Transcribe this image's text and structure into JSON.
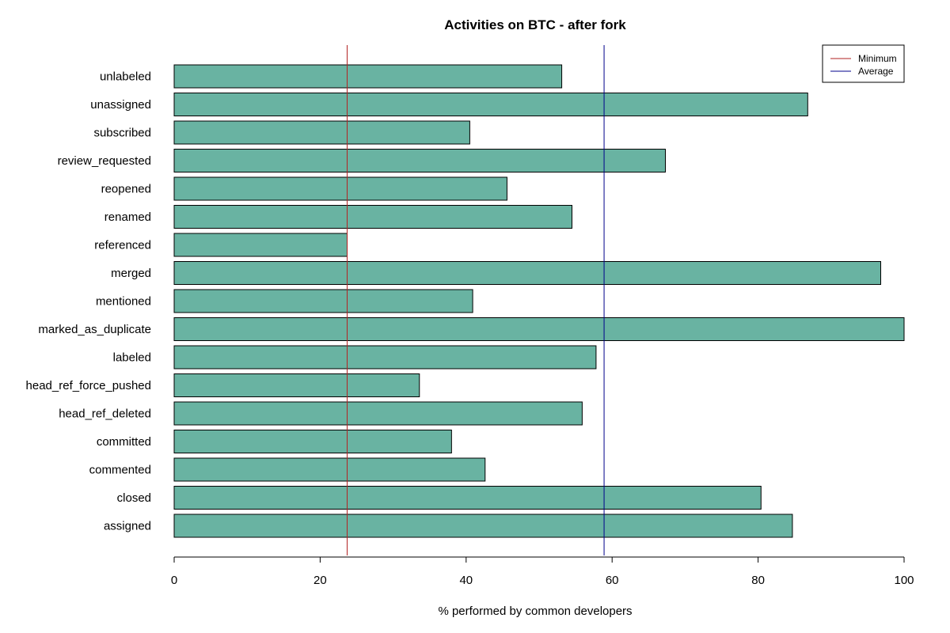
{
  "chart_data": {
    "type": "bar",
    "orientation": "horizontal",
    "title": "Activities on BTC - after fork",
    "xlabel": "% performed by common developers",
    "ylabel": "",
    "xlim": [
      0,
      100
    ],
    "xticks": [
      0,
      20,
      40,
      60,
      80,
      100
    ],
    "grid": false,
    "bar_color": "#69b3a2",
    "categories": [
      "assigned",
      "closed",
      "commented",
      "committed",
      "head_ref_deleted",
      "head_ref_force_pushed",
      "labeled",
      "marked_as_duplicate",
      "mentioned",
      "merged",
      "referenced",
      "renamed",
      "reopened",
      "review_requested",
      "subscribed",
      "unassigned",
      "unlabeled"
    ],
    "values": [
      84.7,
      80.4,
      42.6,
      38.0,
      55.9,
      33.6,
      57.8,
      100.0,
      40.9,
      96.8,
      23.7,
      54.5,
      45.6,
      67.3,
      40.5,
      86.8,
      53.1
    ],
    "reference_lines": [
      {
        "name": "Minimum",
        "value": 23.7,
        "color": "#b22222"
      },
      {
        "name": "Average",
        "value": 58.9,
        "color": "#00008b"
      }
    ],
    "legend": {
      "position": "top-right",
      "entries": [
        {
          "label": "Minimum",
          "color": "#b22222"
        },
        {
          "label": "Average",
          "color": "#00008b"
        }
      ]
    }
  }
}
